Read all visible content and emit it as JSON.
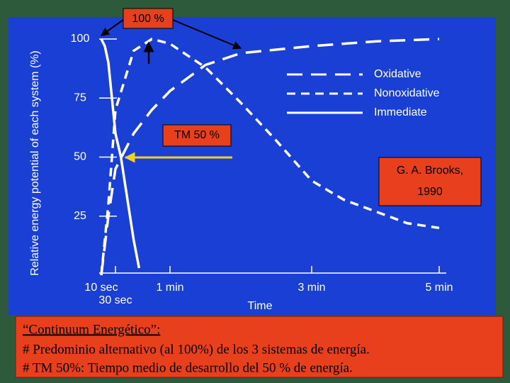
{
  "chart_data": {
    "type": "line",
    "y_label": "Relative energy potential of each system (%)",
    "x_label": "Time",
    "xlim": [
      10,
      300
    ],
    "xticks": [
      {
        "value": 10,
        "label": "10 sec"
      },
      {
        "value": 30,
        "label": "30 sec"
      },
      {
        "value": 60,
        "label": "1 min"
      },
      {
        "value": 180,
        "label": "3 min"
      },
      {
        "value": 300,
        "label": "5 min"
      }
    ],
    "ylim": [
      0,
      100
    ],
    "yticks": [
      25,
      50,
      75,
      100
    ],
    "legend": "top-right",
    "series": [
      {
        "name": "Oxidative",
        "color": "#ffffff",
        "linestyle": "long-dashed",
        "x": [
          10,
          20,
          30,
          40,
          50,
          60,
          90,
          120,
          180,
          240,
          300
        ],
        "values": [
          0,
          25,
          45,
          60,
          70,
          78,
          89,
          94,
          97,
          99,
          100
        ]
      },
      {
        "name": "Nonoxidative",
        "color": "#ffffff",
        "linestyle": "dashed",
        "x": [
          10,
          20,
          30,
          40,
          50,
          60,
          90,
          120,
          150,
          180,
          210,
          240,
          270,
          300
        ],
        "values": [
          0,
          30,
          70,
          95,
          100,
          98,
          88,
          73,
          57,
          40,
          32,
          27,
          22,
          20
        ]
      },
      {
        "name": "Immediate",
        "color": "#ffffff",
        "linestyle": "solid",
        "x": [
          10,
          15,
          20,
          25,
          30,
          33,
          36,
          40,
          43
        ],
        "values": [
          100,
          97,
          90,
          75,
          60,
          50,
          35,
          15,
          3
        ]
      }
    ],
    "annotations": [
      "100 %",
      "TM 50 %",
      "G. A. Brooks,",
      "1990"
    ]
  },
  "textbox": {
    "title": "“Continuum Energético”:",
    "lines": [
      "# Predominio alternativo (al 100%) de los 3 sistemas de energía.",
      "# TM 50%: Tiempo medio de desarrollo del 50 % de energía."
    ]
  }
}
